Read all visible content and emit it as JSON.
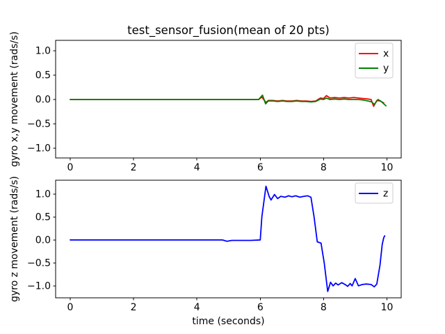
{
  "figure": {
    "background": "#ffffff",
    "axis_color": "#000000",
    "legend_border_color": "#cccccc"
  },
  "chart_data": [
    {
      "type": "line",
      "title": "test_sensor_fusion(mean of 20 pts)",
      "xlabel": "",
      "ylabel": "gyro x,y movement (rads/s)",
      "xlim": [
        -0.46,
        10.45
      ],
      "ylim": [
        -1.2,
        1.214
      ],
      "xticks": [
        0,
        2,
        4,
        6,
        8,
        10
      ],
      "yticks": [
        1.0,
        0.5,
        0.0,
        -0.5,
        -1.0
      ],
      "grid": false,
      "legend_position": "upper right",
      "series": [
        {
          "name": "x",
          "color": "#ff0000",
          "points": [
            [
              0,
              0
            ],
            [
              0.5,
              0
            ],
            [
              1,
              0
            ],
            [
              1.5,
              0
            ],
            [
              2,
              0
            ],
            [
              2.5,
              0
            ],
            [
              3,
              0
            ],
            [
              3.5,
              0
            ],
            [
              4,
              0
            ],
            [
              4.5,
              0
            ],
            [
              5,
              0
            ],
            [
              5.5,
              0
            ],
            [
              5.95,
              0
            ],
            [
              6.05,
              0.05
            ],
            [
              6.18,
              -0.06
            ],
            [
              6.25,
              -0.02
            ],
            [
              6.4,
              -0.02
            ],
            [
              6.55,
              -0.03
            ],
            [
              6.7,
              -0.02
            ],
            [
              6.85,
              -0.03
            ],
            [
              7.0,
              -0.03
            ],
            [
              7.15,
              -0.02
            ],
            [
              7.3,
              -0.03
            ],
            [
              7.45,
              -0.03
            ],
            [
              7.6,
              -0.04
            ],
            [
              7.75,
              -0.03
            ],
            [
              7.9,
              0.03
            ],
            [
              8.0,
              0.02
            ],
            [
              8.09,
              0.08
            ],
            [
              8.2,
              0.03
            ],
            [
              8.35,
              0.04
            ],
            [
              8.5,
              0.03
            ],
            [
              8.65,
              0.04
            ],
            [
              8.8,
              0.03
            ],
            [
              8.95,
              0.04
            ],
            [
              9.1,
              0.03
            ],
            [
              9.25,
              0.02
            ],
            [
              9.4,
              0.01
            ],
            [
              9.5,
              0.0
            ],
            [
              9.58,
              -0.14
            ],
            [
              9.68,
              -0.02
            ],
            [
              9.78,
              -0.03
            ],
            [
              9.9,
              -0.07
            ]
          ]
        },
        {
          "name": "y",
          "color": "#008000",
          "points": [
            [
              0,
              0
            ],
            [
              0.5,
              0
            ],
            [
              1,
              0
            ],
            [
              1.5,
              0
            ],
            [
              2,
              0
            ],
            [
              2.5,
              0
            ],
            [
              3,
              0
            ],
            [
              3.5,
              0
            ],
            [
              4,
              0
            ],
            [
              4.5,
              0
            ],
            [
              5,
              0
            ],
            [
              5.5,
              0
            ],
            [
              5.95,
              0
            ],
            [
              6.07,
              0.09
            ],
            [
              6.17,
              -0.09
            ],
            [
              6.25,
              -0.03
            ],
            [
              6.4,
              -0.03
            ],
            [
              6.55,
              -0.04
            ],
            [
              6.7,
              -0.03
            ],
            [
              6.85,
              -0.04
            ],
            [
              7.0,
              -0.04
            ],
            [
              7.15,
              -0.03
            ],
            [
              7.3,
              -0.04
            ],
            [
              7.45,
              -0.04
            ],
            [
              7.6,
              -0.05
            ],
            [
              7.75,
              -0.04
            ],
            [
              7.9,
              0.01
            ],
            [
              8.0,
              0.0
            ],
            [
              8.09,
              0.03
            ],
            [
              8.2,
              0.0
            ],
            [
              8.35,
              0.01
            ],
            [
              8.5,
              0.0
            ],
            [
              8.65,
              0.01
            ],
            [
              8.8,
              0.0
            ],
            [
              8.95,
              0.0
            ],
            [
              9.1,
              0.0
            ],
            [
              9.25,
              -0.01
            ],
            [
              9.4,
              -0.03
            ],
            [
              9.52,
              -0.05
            ],
            [
              9.6,
              -0.1
            ],
            [
              9.72,
              0.0
            ],
            [
              9.82,
              -0.04
            ],
            [
              9.97,
              -0.13
            ]
          ]
        }
      ]
    },
    {
      "type": "line",
      "title": "",
      "xlabel": "time (seconds)",
      "ylabel": "gyro z movement (rads/s)",
      "xlim": [
        -0.46,
        10.45
      ],
      "ylim": [
        -1.26,
        1.3
      ],
      "xticks": [
        0,
        2,
        4,
        6,
        8,
        10
      ],
      "yticks": [
        1.0,
        0.5,
        0.0,
        -0.5,
        -1.0
      ],
      "grid": false,
      "legend_position": "upper right",
      "series": [
        {
          "name": "z",
          "color": "#0000ff",
          "points": [
            [
              0,
              0
            ],
            [
              0.5,
              0
            ],
            [
              1,
              0
            ],
            [
              1.5,
              0
            ],
            [
              2,
              0
            ],
            [
              2.5,
              0
            ],
            [
              3,
              0
            ],
            [
              3.5,
              0
            ],
            [
              4,
              0
            ],
            [
              4.4,
              0
            ],
            [
              4.8,
              0
            ],
            [
              4.95,
              -0.03
            ],
            [
              5.1,
              -0.01
            ],
            [
              5.4,
              -0.01
            ],
            [
              5.7,
              -0.01
            ],
            [
              6.0,
              0
            ],
            [
              6.05,
              0.5
            ],
            [
              6.18,
              1.17
            ],
            [
              6.28,
              0.95
            ],
            [
              6.34,
              0.87
            ],
            [
              6.45,
              0.99
            ],
            [
              6.55,
              0.9
            ],
            [
              6.65,
              0.95
            ],
            [
              6.78,
              0.93
            ],
            [
              6.9,
              0.96
            ],
            [
              7.0,
              0.94
            ],
            [
              7.12,
              0.96
            ],
            [
              7.25,
              0.93
            ],
            [
              7.38,
              0.95
            ],
            [
              7.5,
              0.96
            ],
            [
              7.6,
              0.93
            ],
            [
              7.7,
              0.5
            ],
            [
              7.8,
              -0.04
            ],
            [
              7.92,
              -0.07
            ],
            [
              8.02,
              -0.5
            ],
            [
              8.13,
              -1.12
            ],
            [
              8.22,
              -0.92
            ],
            [
              8.3,
              -1.0
            ],
            [
              8.38,
              -0.94
            ],
            [
              8.46,
              -0.98
            ],
            [
              8.57,
              -0.93
            ],
            [
              8.68,
              -0.97
            ],
            [
              8.76,
              -1.01
            ],
            [
              8.84,
              -0.95
            ],
            [
              8.9,
              -1.0
            ],
            [
              9.0,
              -0.84
            ],
            [
              9.1,
              -1.0
            ],
            [
              9.22,
              -0.97
            ],
            [
              9.35,
              -0.96
            ],
            [
              9.5,
              -0.97
            ],
            [
              9.6,
              -1.02
            ],
            [
              9.68,
              -0.96
            ],
            [
              9.78,
              -0.55
            ],
            [
              9.85,
              -0.1
            ],
            [
              9.9,
              0.05
            ],
            [
              9.93,
              0.09
            ]
          ]
        }
      ]
    }
  ]
}
